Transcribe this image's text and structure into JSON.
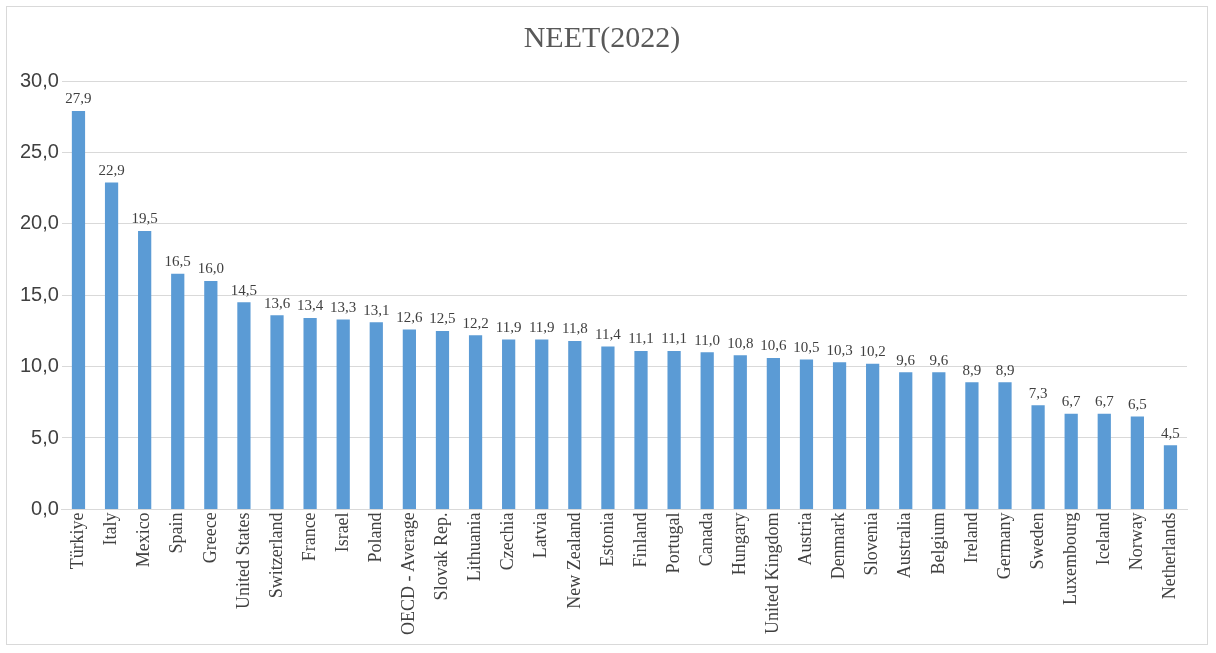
{
  "chart_data": {
    "type": "bar",
    "title": "NEET(2022)",
    "categories": [
      "Türkiye",
      "Italy",
      "Mexico",
      "Spain",
      "Greece",
      "United States",
      "Switzerland",
      "France",
      "Israel",
      "Poland",
      "OECD - Average",
      "Slovak Rep.",
      "Lithuania",
      "Czechia",
      "Latvia",
      "New Zealand",
      "Estonia",
      "Finland",
      "Portugal",
      "Canada",
      "Hungary",
      "United Kingdom",
      "Austria",
      "Denmark",
      "Slovenia",
      "Australia",
      "Belgium",
      "Ireland",
      "Germany",
      "Sweden",
      "Luxembourg",
      "Iceland",
      "Norway",
      "Netherlands"
    ],
    "values": [
      27.9,
      22.9,
      19.5,
      16.5,
      16.0,
      14.5,
      13.6,
      13.4,
      13.3,
      13.1,
      12.6,
      12.5,
      12.2,
      11.9,
      11.9,
      11.8,
      11.4,
      11.1,
      11.1,
      11.0,
      10.8,
      10.6,
      10.5,
      10.3,
      10.2,
      9.6,
      9.6,
      8.9,
      8.9,
      7.3,
      6.7,
      6.7,
      6.5,
      4.5
    ],
    "value_labels": [
      "27,9",
      "22,9",
      "19,5",
      "16,5",
      "16,0",
      "14,5",
      "13,6",
      "13,4",
      "13,3",
      "13,1",
      "12,6",
      "12,5",
      "12,2",
      "11,9",
      "11,9",
      "11,8",
      "11,4",
      "11,1",
      "11,1",
      "11,0",
      "10,8",
      "10,6",
      "10,5",
      "10,3",
      "10,2",
      "9,6",
      "9,6",
      "8,9",
      "8,9",
      "7,3",
      "6,7",
      "6,7",
      "6,5",
      "4,5"
    ],
    "color": "#5b9bd5",
    "ylim": [
      0,
      30
    ],
    "yticks": [
      {
        "value": 0,
        "label": "0,0"
      },
      {
        "value": 5,
        "label": "5,0"
      },
      {
        "value": 10,
        "label": "10,0"
      },
      {
        "value": 15,
        "label": "15,0"
      },
      {
        "value": 20,
        "label": "20,0"
      },
      {
        "value": 25,
        "label": "25,0"
      },
      {
        "value": 30,
        "label": "30,0"
      }
    ],
    "grid": "y",
    "legend": false
  }
}
